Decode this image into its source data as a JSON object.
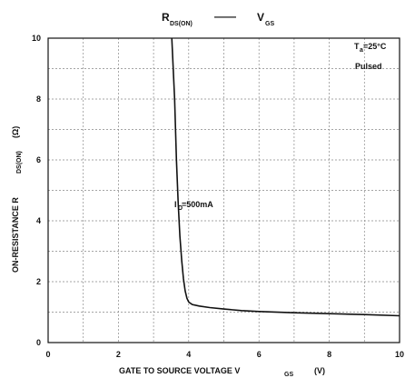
{
  "chart_data": {
    "type": "line",
    "title": {
      "left_main": "R",
      "left_sub": "DS(ON)",
      "separator": "——",
      "right_main": "V",
      "right_sub": "GS"
    },
    "xlabel": {
      "main": "GATE TO SOURCE VOLTAGE   V",
      "sub": "GS",
      "unit": "(V)"
    },
    "ylabel": {
      "main": "ON-RESISTANCE   R",
      "sub": "DS(ON)",
      "unit": "(Ω)"
    },
    "xlim": [
      0,
      10
    ],
    "ylim": [
      0,
      10
    ],
    "x_ticks": [
      "0",
      "2",
      "4",
      "6",
      "8",
      "10"
    ],
    "y_ticks": [
      "0",
      "2",
      "4",
      "6",
      "8",
      "10"
    ],
    "grid": true,
    "conditions": {
      "temp_main": "T",
      "temp_sub": "a",
      "temp_value": "=25°C",
      "mode": "Pulsed"
    },
    "series": [
      {
        "label_main": "I",
        "label_sub": "D",
        "label_value": "=500mA",
        "x": [
          3.52,
          3.6,
          3.65,
          3.7,
          3.75,
          3.8,
          3.85,
          3.9,
          3.95,
          4.0,
          4.1,
          4.3,
          4.6,
          5.0,
          5.5,
          6.0,
          7.0,
          8.0,
          9.0,
          10.0
        ],
        "y": [
          10.0,
          8.0,
          6.0,
          4.6,
          3.5,
          2.7,
          2.1,
          1.7,
          1.45,
          1.33,
          1.25,
          1.2,
          1.15,
          1.1,
          1.05,
          1.02,
          0.98,
          0.95,
          0.92,
          0.88
        ]
      }
    ]
  }
}
